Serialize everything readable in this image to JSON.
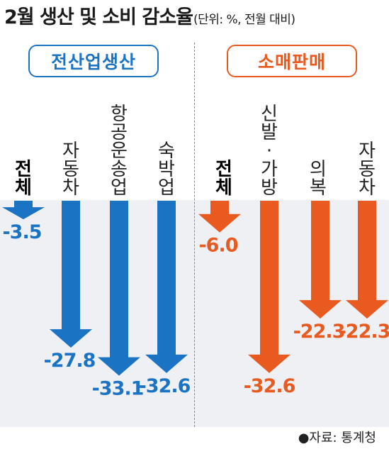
{
  "title": "2월 생산 및 소비 감소율",
  "unit_note": "(단위: %, 전월 대비)",
  "source": "●자료: 통계청",
  "colors": {
    "production": "#1b73c4",
    "retail": "#e85a1f"
  },
  "chart_data": {
    "type": "bar",
    "groups": [
      {
        "name": "전산업생산",
        "categories": [
          "전체",
          "자동차",
          "항공운송업",
          "숙박업"
        ],
        "values": [
          -3.5,
          -27.8,
          -33.1,
          -32.6
        ],
        "labels": [
          "-3.5",
          "-27.8",
          "-33.1",
          "-32.6"
        ]
      },
      {
        "name": "소매판매",
        "categories": [
          "전체",
          "신발·가방",
          "의복",
          "자동차"
        ],
        "values": [
          -6.0,
          -32.6,
          -22.3,
          -22.3
        ],
        "labels": [
          "-6.0",
          "-32.6",
          "-22.3",
          "-22.3"
        ]
      }
    ]
  }
}
